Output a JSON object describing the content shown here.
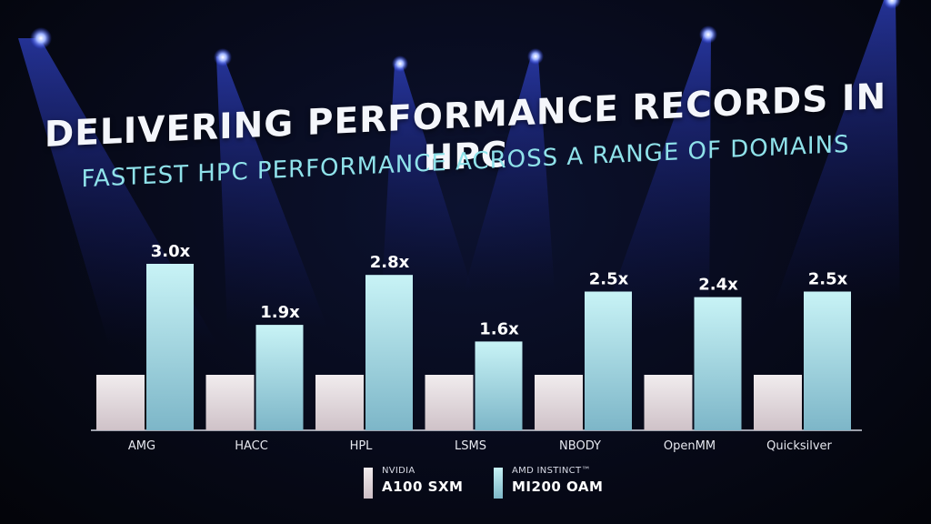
{
  "title": "DELIVERING PERFORMANCE RECORDS IN HPC",
  "subtitle": "FASTEST HPC PERFORMANCE ACROSS A RANGE OF DOMAINS",
  "colors": {
    "nvidia_bar": "#e8dfe3",
    "amd_bar": "#bdeef2",
    "label_text": "#ffffff",
    "axis": "#cfd3de"
  },
  "legend": {
    "nvidia": {
      "brand": "NVIDIA",
      "product": "A100 SXM"
    },
    "amd": {
      "brand": "AMD INSTINCT™",
      "product": "MI200 OAM"
    }
  },
  "chart_data": {
    "type": "bar",
    "categories": [
      "AMG",
      "HACC",
      "HPL",
      "LSMS",
      "NBODY",
      "OpenMM",
      "Quicksilver"
    ],
    "series": [
      {
        "name": "NVIDIA A100 SXM",
        "values": [
          1.0,
          1.0,
          1.0,
          1.0,
          1.0,
          1.0,
          1.0
        ]
      },
      {
        "name": "AMD INSTINCT™ MI200 OAM",
        "values": [
          3.0,
          1.9,
          2.8,
          1.6,
          2.5,
          2.4,
          2.5
        ]
      }
    ],
    "data_labels": [
      "3.0x",
      "1.9x",
      "2.8x",
      "1.6x",
      "2.5x",
      "2.4x",
      "2.5x"
    ],
    "xlabel": "",
    "ylabel": "",
    "ylim": [
      0,
      3.0
    ],
    "grid": false,
    "legend_position": "bottom"
  }
}
